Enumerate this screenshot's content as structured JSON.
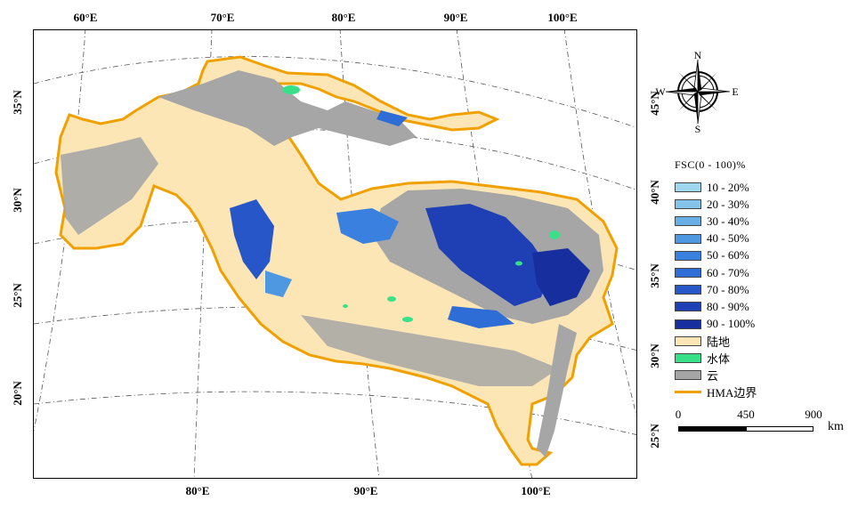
{
  "map": {
    "lon_ticks_top": [
      "60°E",
      "70°E",
      "80°E",
      "90°E",
      "100°E"
    ],
    "lon_ticks_bottom": [
      "80°E",
      "90°E",
      "100°E"
    ],
    "lat_ticks_left": [
      "35°N",
      "30°N",
      "25°N",
      "20°N"
    ],
    "lat_ticks_right": [
      "45°N",
      "40°N",
      "35°N",
      "30°N",
      "25°N"
    ],
    "colors": {
      "land": "#fde6b5",
      "water": "#38e08a",
      "cloud": "#a6a6a6",
      "boundary": "#f0a000",
      "graticule": "#555555"
    }
  },
  "compass": {
    "n": "N",
    "s": "S",
    "e": "E",
    "w": "W"
  },
  "legend": {
    "title": "FSC(0 - 100)%",
    "items": [
      {
        "label": "10 - 20%",
        "color": "#9fd8ee"
      },
      {
        "label": "20 - 30%",
        "color": "#86c3ea"
      },
      {
        "label": "30 - 40%",
        "color": "#6aaee6"
      },
      {
        "label": "40 - 50%",
        "color": "#4e98e2"
      },
      {
        "label": "50 - 60%",
        "color": "#3a80de"
      },
      {
        "label": "60 - 70%",
        "color": "#2e6cd6"
      },
      {
        "label": "70 - 80%",
        "color": "#2656c8"
      },
      {
        "label": "80 - 90%",
        "color": "#1e40b4"
      },
      {
        "label": "90 - 100%",
        "color": "#162e9e"
      },
      {
        "label": "陆地",
        "color": "#fde6b5"
      },
      {
        "label": "水体",
        "color": "#38e08a"
      },
      {
        "label": "云",
        "color": "#a6a6a6"
      }
    ],
    "boundary_label": "HMA边界",
    "boundary_color": "#f0a000"
  },
  "scalebar": {
    "labels": [
      "0",
      "450",
      "900"
    ],
    "unit": "km"
  }
}
